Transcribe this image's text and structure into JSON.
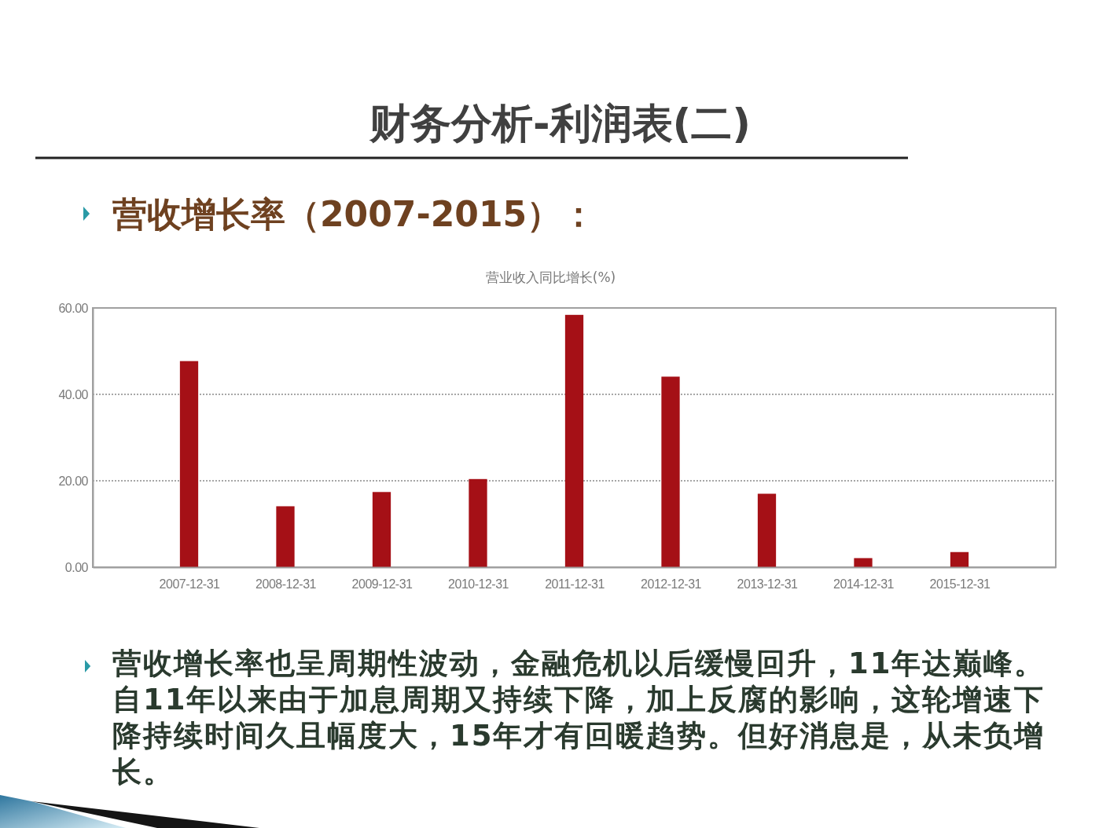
{
  "chart_data": {
    "type": "bar",
    "title": "财务分析-利润表(二)",
    "subtitle": "营收增长率（2007-2015）：",
    "categories": [
      "2007-12-31",
      "2008-12-31",
      "2009-12-31",
      "2010-12-31",
      "2011-12-31",
      "2012-12-31",
      "2013-12-31",
      "2014-12-31",
      "2015-12-31"
    ],
    "values": [
      47.7,
      14.1,
      17.4,
      20.4,
      58.4,
      44.1,
      17.0,
      2.1,
      3.5
    ],
    "color": "#a51016",
    "ylim": [
      0,
      60
    ],
    "yticks": [
      {
        "value": 0,
        "label": "0.00"
      },
      {
        "value": 20,
        "label": "20.00"
      },
      {
        "value": 40,
        "label": "40.00"
      },
      {
        "value": 60,
        "label": "60.00"
      }
    ],
    "grid": "y",
    "annotations": [
      "营业收入同比增长(%)",
      "营收增长率也呈周期性波动，金融危机以后缓慢回升，11年达巅峰。自11年以来由于加息周期又持续下降，加上反腐的影响，这轮增速下降持续时间久且幅度大，15年才有回暖趋势。但好消息是，从未负增长。"
    ]
  }
}
